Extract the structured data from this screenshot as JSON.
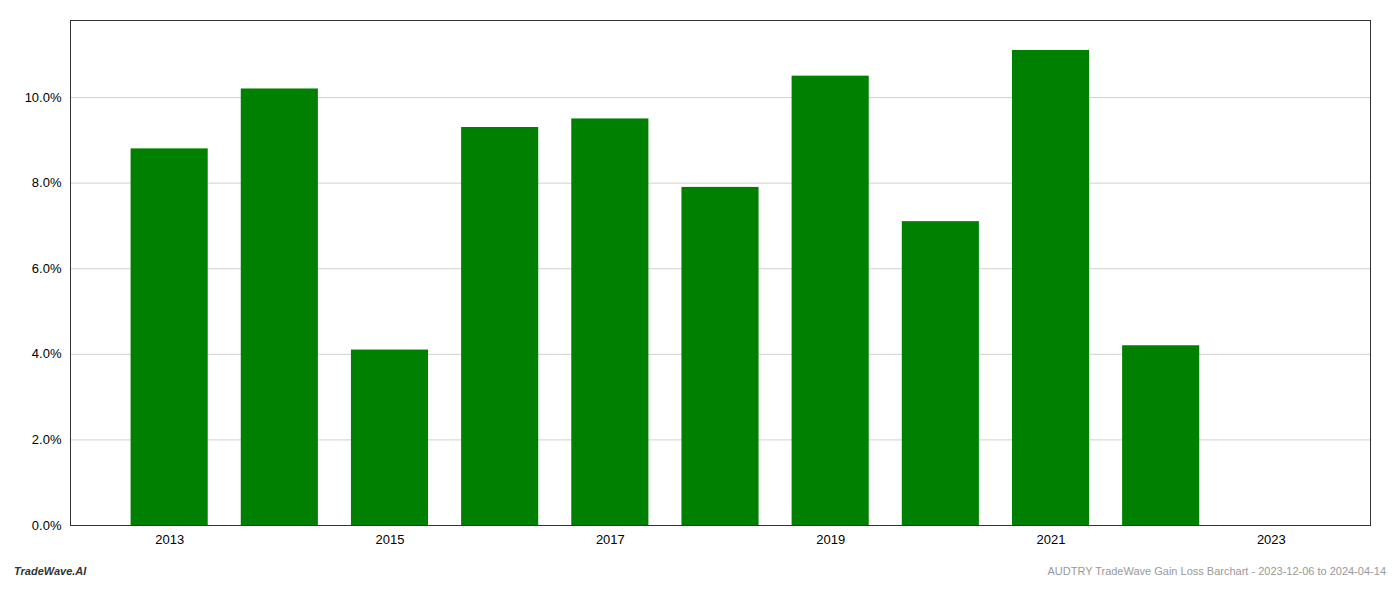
{
  "chart_data": {
    "type": "bar",
    "x": [
      2013,
      2014,
      2015,
      2016,
      2017,
      2018,
      2019,
      2020,
      2021,
      2022
    ],
    "values": [
      0.088,
      0.102,
      0.041,
      0.093,
      0.095,
      0.079,
      0.105,
      0.071,
      0.111,
      0.042
    ],
    "color": "#008000",
    "xlim": [
      2012.1,
      2023.9
    ],
    "xticks": [
      2013,
      2015,
      2017,
      2019,
      2021,
      2023
    ],
    "ylim": [
      0,
      0.118
    ],
    "yticks": [
      {
        "value": 0.0,
        "label": "0.0%"
      },
      {
        "value": 0.02,
        "label": "2.0%"
      },
      {
        "value": 0.04,
        "label": "4.0%"
      },
      {
        "value": 0.06,
        "label": "6.0%"
      },
      {
        "value": 0.08,
        "label": "8.0%"
      },
      {
        "value": 0.1,
        "label": "10.0%"
      }
    ],
    "grid": true,
    "annotations": [
      "TradeWave.AI",
      "AUDTRY TradeWave Gain Loss Barchart - 2023-12-06 to 2024-04-14"
    ]
  }
}
